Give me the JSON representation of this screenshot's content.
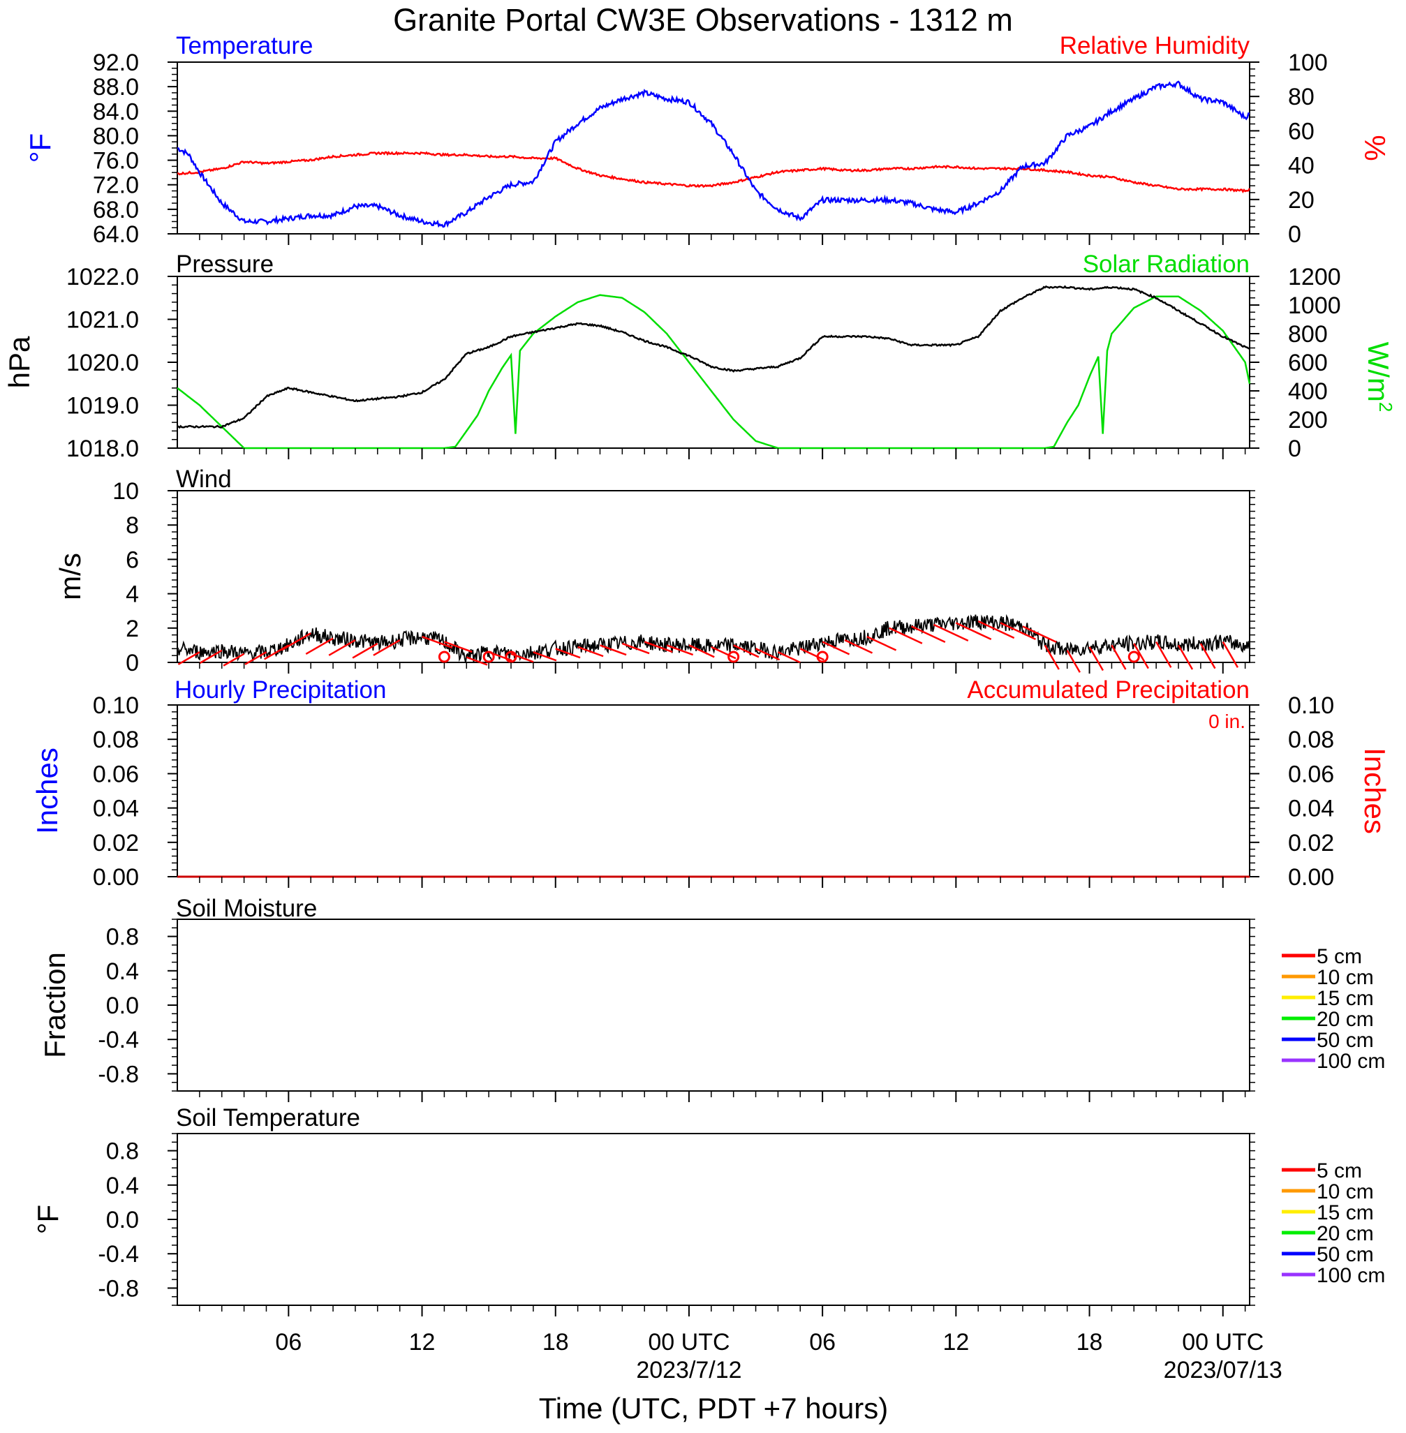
{
  "title": "Granite Portal CW3E Observations - 1312 m",
  "x_axis": {
    "label": "Time (UTC, PDT +7 hours)",
    "ticks": [
      {
        "h": 6,
        "label": "06",
        "sub": ""
      },
      {
        "h": 12,
        "label": "12",
        "sub": ""
      },
      {
        "h": 18,
        "label": "18",
        "sub": ""
      },
      {
        "h": 24,
        "label": "00 UTC",
        "sub": "2023/7/12"
      },
      {
        "h": 30,
        "label": "06",
        "sub": ""
      },
      {
        "h": 36,
        "label": "12",
        "sub": ""
      },
      {
        "h": 42,
        "label": "18",
        "sub": ""
      },
      {
        "h": 48,
        "label": "00 UTC",
        "sub": "2023/07/13"
      }
    ]
  },
  "panels": {
    "temp_rh": {
      "left_title": "Temperature",
      "right_title": "Relative Humidity",
      "left_units": "°F",
      "right_units": "%",
      "left_ticks": [
        "64.0",
        "68.0",
        "72.0",
        "76.0",
        "80.0",
        "84.0",
        "88.0",
        "92.0"
      ],
      "right_ticks": [
        "0",
        "20",
        "40",
        "60",
        "80",
        "100"
      ]
    },
    "pressure_solar": {
      "left_title": "Pressure",
      "right_title": "Solar Radiation",
      "left_units": "hPa",
      "right_units": "W/m",
      "right_units_sup": "2",
      "left_ticks": [
        "1018.0",
        "1019.0",
        "1020.0",
        "1021.0",
        "1022.0"
      ],
      "right_ticks": [
        "0",
        "200",
        "400",
        "600",
        "800",
        "1000",
        "1200"
      ]
    },
    "wind": {
      "left_title": "Wind",
      "left_units": "m/s",
      "left_ticks": [
        "0",
        "2",
        "4",
        "6",
        "8",
        "10"
      ]
    },
    "precip": {
      "left_title": "Hourly Precipitation",
      "right_title": "Accumulated Precipitation",
      "total": "0 in.",
      "left_units": "Inches",
      "right_units": "Inches",
      "left_ticks": [
        "0.00",
        "0.02",
        "0.04",
        "0.06",
        "0.08",
        "0.10"
      ],
      "right_ticks": [
        "0.00",
        "0.02",
        "0.04",
        "0.06",
        "0.08",
        "0.10"
      ]
    },
    "soil_moisture": {
      "left_title": "Soil Moisture",
      "left_units": "Fraction",
      "left_ticks": [
        "-0.8",
        "-0.4",
        "0.0",
        "0.4",
        "0.8"
      ],
      "legend": [
        "5 cm",
        "10 cm",
        "15 cm",
        "20 cm",
        "50 cm",
        "100 cm"
      ]
    },
    "soil_temp": {
      "left_title": "Soil Temperature",
      "left_units": "°F",
      "left_ticks": [
        "-0.8",
        "-0.4",
        "0.0",
        "0.4",
        "0.8"
      ],
      "legend": [
        "5 cm",
        "10 cm",
        "15 cm",
        "20 cm",
        "50 cm",
        "100 cm"
      ]
    }
  },
  "colors": {
    "temperature": "#0000ff",
    "humidity": "#ff0000",
    "pressure": "#000000",
    "solar": "#00dd00",
    "wind_speed": "#000000",
    "wind_barb": "#ff0000",
    "precip_hourly": "#0000ff",
    "precip_accum": "#cc0000",
    "legend": [
      "#ff0000",
      "#ff9900",
      "#ffee00",
      "#00ee00",
      "#0000ff",
      "#9933ff"
    ]
  },
  "chart_data": [
    {
      "type": "line",
      "x_unit": "hours since 2023-07-11 00 UTC",
      "xlim": [
        1,
        49.2
      ],
      "series": [
        {
          "name": "Temperature",
          "axis": "left",
          "ylim": [
            64,
            92
          ],
          "x": [
            1,
            1.5,
            2,
            3,
            4,
            5,
            6,
            7,
            8,
            9,
            10,
            11,
            12,
            13,
            14,
            15,
            16,
            17,
            18,
            19,
            20,
            21,
            22,
            23,
            24,
            25,
            26,
            27,
            28,
            29,
            30,
            31,
            32,
            33,
            34,
            35,
            36,
            37,
            38,
            39,
            40,
            41,
            42,
            43,
            44,
            45,
            46,
            47,
            48,
            49,
            49.2
          ],
          "y": [
            78,
            77,
            74,
            69,
            66,
            66,
            66.5,
            67,
            67,
            68.5,
            68.5,
            67,
            66,
            65.5,
            67.5,
            70,
            72,
            72.5,
            79,
            82,
            84.5,
            86,
            87,
            86,
            85.5,
            82,
            77,
            71,
            68,
            66.5,
            69.5,
            69.5,
            69.5,
            69.5,
            69,
            68,
            67.5,
            69,
            71,
            75,
            75.5,
            80,
            81.5,
            84,
            86,
            88,
            88.5,
            86,
            85.5,
            83,
            83.5
          ]
        },
        {
          "name": "Relative Humidity",
          "axis": "right",
          "ylim": [
            0,
            100
          ],
          "x": [
            1,
            2,
            3,
            4,
            5,
            6,
            7,
            8,
            9,
            10,
            11,
            12,
            13,
            14,
            15,
            16,
            17,
            18,
            19,
            20,
            21,
            22,
            23,
            24,
            25,
            26,
            27,
            28,
            29,
            30,
            31,
            32,
            33,
            34,
            35,
            36,
            37,
            38,
            39,
            40,
            41,
            42,
            43,
            44,
            45,
            46,
            47,
            48,
            49,
            49.2
          ],
          "y": [
            35,
            36,
            38,
            42,
            41,
            42,
            43,
            45,
            46,
            47,
            47,
            47,
            46,
            46,
            45,
            45,
            44,
            44,
            38,
            34,
            32,
            30,
            29,
            28,
            28,
            30,
            33,
            36,
            37,
            38,
            37,
            37,
            38,
            38,
            39,
            39,
            38,
            38,
            38,
            37,
            36,
            34,
            33,
            30,
            28,
            26,
            26,
            26,
            25,
            26
          ]
        }
      ]
    },
    {
      "type": "line",
      "series": [
        {
          "name": "Pressure",
          "axis": "left",
          "ylim": [
            1018,
            1022
          ],
          "x": [
            1,
            2,
            3,
            4,
            5,
            6,
            7,
            8,
            9,
            10,
            11,
            12,
            13,
            14,
            15,
            16,
            17,
            18,
            19,
            20,
            21,
            22,
            23,
            24,
            25,
            26,
            27,
            28,
            29,
            30,
            31,
            32,
            33,
            34,
            35,
            36,
            37,
            38,
            39,
            40,
            41,
            42,
            43,
            44,
            45,
            46,
            47,
            48,
            49,
            49.2
          ],
          "y": [
            1018.5,
            1018.5,
            1018.5,
            1018.7,
            1019.2,
            1019.4,
            1019.3,
            1019.2,
            1019.1,
            1019.15,
            1019.2,
            1019.3,
            1019.6,
            1020.2,
            1020.35,
            1020.6,
            1020.7,
            1020.8,
            1020.9,
            1020.85,
            1020.7,
            1020.5,
            1020.35,
            1020.15,
            1019.9,
            1019.8,
            1019.85,
            1019.9,
            1020.1,
            1020.6,
            1020.6,
            1020.6,
            1020.55,
            1020.4,
            1020.4,
            1020.4,
            1020.6,
            1021.2,
            1021.5,
            1021.75,
            1021.75,
            1021.7,
            1021.75,
            1021.7,
            1021.5,
            1021.2,
            1020.9,
            1020.6,
            1020.35,
            1020.3
          ]
        },
        {
          "name": "Solar Radiation",
          "axis": "right",
          "ylim": [
            0,
            1200
          ],
          "x": [
            1,
            2,
            3,
            4,
            12,
            13,
            13.5,
            14,
            14.5,
            15,
            15.6,
            16,
            16.2,
            16.4,
            17,
            18,
            19,
            20,
            21,
            22,
            23,
            24,
            25,
            26,
            27,
            28,
            40,
            40.4,
            41,
            41.5,
            42,
            42.4,
            42.6,
            42.8,
            43,
            44,
            45,
            46,
            47,
            48,
            49,
            49.2
          ],
          "y": [
            420,
            300,
            150,
            0,
            0,
            0,
            10,
            120,
            230,
            400,
            560,
            650,
            100,
            680,
            800,
            920,
            1020,
            1070,
            1050,
            950,
            800,
            600,
            400,
            200,
            50,
            0,
            0,
            10,
            180,
            300,
            500,
            640,
            100,
            680,
            800,
            980,
            1060,
            1060,
            960,
            820,
            600,
            450
          ]
        }
      ]
    },
    {
      "type": "line",
      "series": [
        {
          "name": "Wind Speed",
          "ylim": [
            0,
            10
          ],
          "x": [
            1,
            2,
            3,
            4,
            5,
            6,
            7,
            8,
            9,
            10,
            11,
            12,
            13,
            14,
            15,
            16,
            17,
            18,
            19,
            20,
            21,
            22,
            23,
            24,
            25,
            26,
            27,
            28,
            29,
            30,
            31,
            32,
            33,
            34,
            35,
            36,
            37,
            38,
            39,
            40,
            41,
            42,
            43,
            44,
            45,
            46,
            47,
            48,
            49,
            49.2
          ],
          "y": [
            0.8,
            0.6,
            0.7,
            0.5,
            0.6,
            1.0,
            1.7,
            1.4,
            1.3,
            1.1,
            1.3,
            1.5,
            1.2,
            0.3,
            0.6,
            0.5,
            0.6,
            0.8,
            0.9,
            1.0,
            1.1,
            1.2,
            1.0,
            1.0,
            0.9,
            1.0,
            0.8,
            0.6,
            0.8,
            1.2,
            1.3,
            1.5,
            2.0,
            2.1,
            2.2,
            2.3,
            2.4,
            2.3,
            2.1,
            1.0,
            0.7,
            0.9,
            1.0,
            1.1,
            1.2,
            1.0,
            1.1,
            1.2,
            1.0,
            0.9
          ]
        }
      ]
    },
    {
      "type": "line",
      "series": [
        {
          "name": "Hourly Precipitation",
          "ylim": [
            0,
            0.1
          ],
          "x": [
            1,
            49.2
          ],
          "y": [
            0,
            0
          ]
        },
        {
          "name": "Accumulated Precipitation",
          "ylim": [
            0,
            0.1
          ],
          "x": [
            1,
            49.2
          ],
          "y": [
            0,
            0
          ]
        }
      ]
    },
    {
      "type": "line",
      "series": [],
      "ylim": [
        -1,
        1
      ]
    },
    {
      "type": "line",
      "series": [],
      "ylim": [
        -1,
        1
      ]
    }
  ]
}
